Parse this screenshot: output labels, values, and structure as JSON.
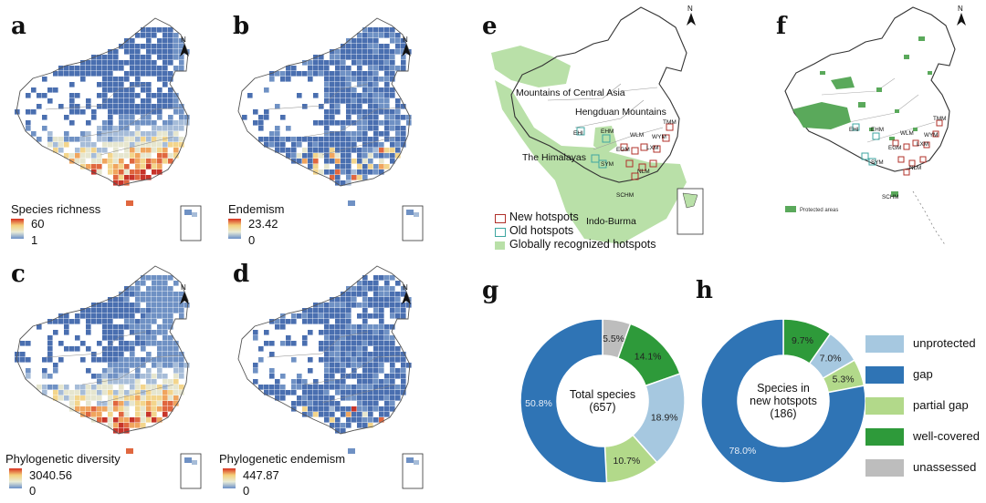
{
  "panels": {
    "a": {
      "label": "a",
      "legend_title": "Species richness",
      "max": "60",
      "min": "1"
    },
    "b": {
      "label": "b",
      "legend_title": "Endemism",
      "max": "23.42",
      "min": "0"
    },
    "c": {
      "label": "c",
      "legend_title": "Phylogenetic diversity",
      "max": "3040.56",
      "min": "0"
    },
    "d": {
      "label": "d",
      "legend_title": "Phylogenetic endemism",
      "max": "447.87",
      "min": "0"
    },
    "e": {
      "label": "e",
      "regions": [
        "Mountains of Central Asia",
        "Hengduan Mountains",
        "The Himalayas",
        "Indo-Burma"
      ],
      "hotspot_labels": [
        "EHI",
        "EHM",
        "WLM",
        "TMM",
        "WYM",
        "EGM",
        "LXM",
        "SYM",
        "NLM",
        "SCHM"
      ],
      "legend": [
        "New hotspots",
        "Old hotspots",
        "Globally recognized hotspots"
      ]
    },
    "f": {
      "label": "f",
      "hotspot_labels": [
        "EHI",
        "EHM",
        "WLM",
        "TMM",
        "WYM",
        "EGM",
        "LXM",
        "SYM",
        "NLM",
        "SCHM"
      ],
      "legend": [
        "Protected areas"
      ]
    }
  },
  "north": "N",
  "chart_data": [
    {
      "type": "pie",
      "label": "g",
      "center_label": "Total species",
      "center_value": "(657)",
      "slices": [
        {
          "category": "unassessed",
          "value": 5.5,
          "label": "5.5%"
        },
        {
          "category": "well-covered",
          "value": 14.1,
          "label": "14.1%"
        },
        {
          "category": "unprotected",
          "value": 18.9,
          "label": "18.9%"
        },
        {
          "category": "partial gap",
          "value": 10.7,
          "label": "10.7%"
        },
        {
          "category": "gap",
          "value": 50.8,
          "label": "50.8%"
        }
      ]
    },
    {
      "type": "pie",
      "label": "h",
      "center_label": "Species in new hotspots",
      "center_value": "(186)",
      "slices": [
        {
          "category": "well-covered",
          "value": 9.7,
          "label": "9.7%"
        },
        {
          "category": "unprotected",
          "value": 7.0,
          "label": "7.0%"
        },
        {
          "category": "partial gap",
          "value": 5.3,
          "label": "5.3%"
        },
        {
          "category": "gap",
          "value": 78.0,
          "label": "78.0%"
        }
      ]
    }
  ],
  "categories": [
    {
      "name": "unprotected",
      "color": "#a6c8e0"
    },
    {
      "name": "gap",
      "color": "#2f74b5"
    },
    {
      "name": "partial gap",
      "color": "#b2d98a"
    },
    {
      "name": "well-covered",
      "color": "#2e9a3a"
    },
    {
      "name": "unassessed",
      "color": "#bdbdbd"
    }
  ]
}
